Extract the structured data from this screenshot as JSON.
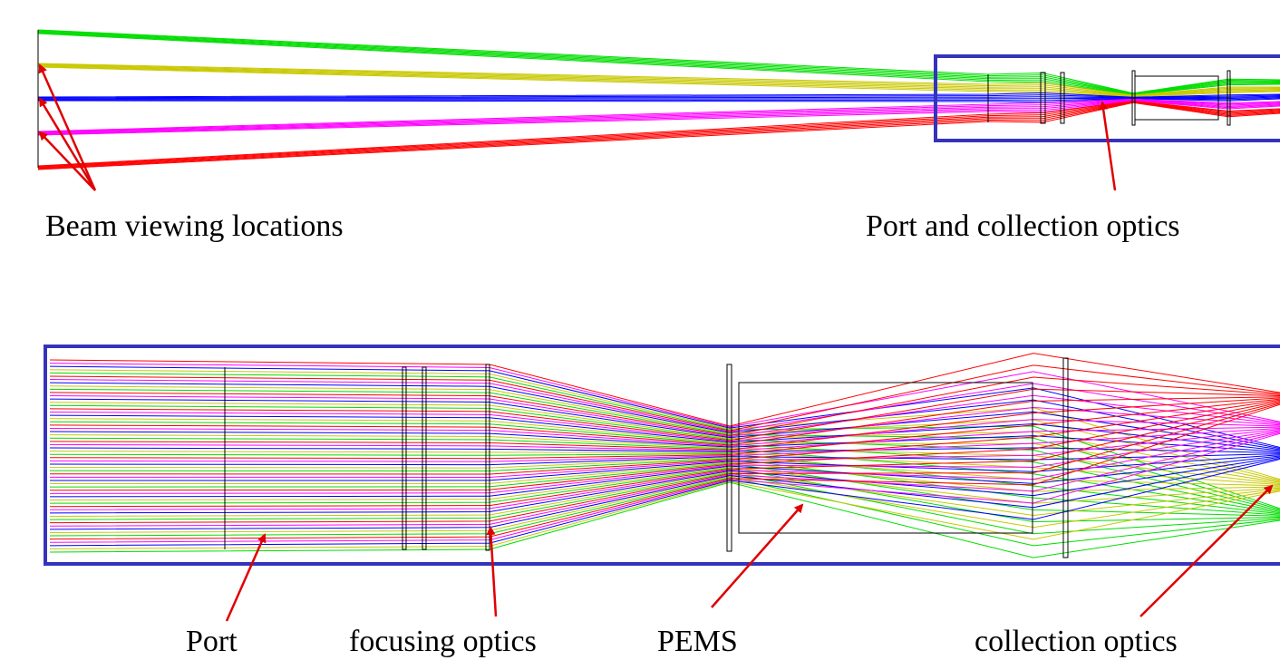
{
  "top_panel": {
    "labels": [
      "Beam viewing locations",
      "Port and collection optics"
    ]
  },
  "bottom_panel": {
    "labels": [
      "Port",
      "focusing optics",
      "PEMS",
      "collection optics"
    ]
  }
}
